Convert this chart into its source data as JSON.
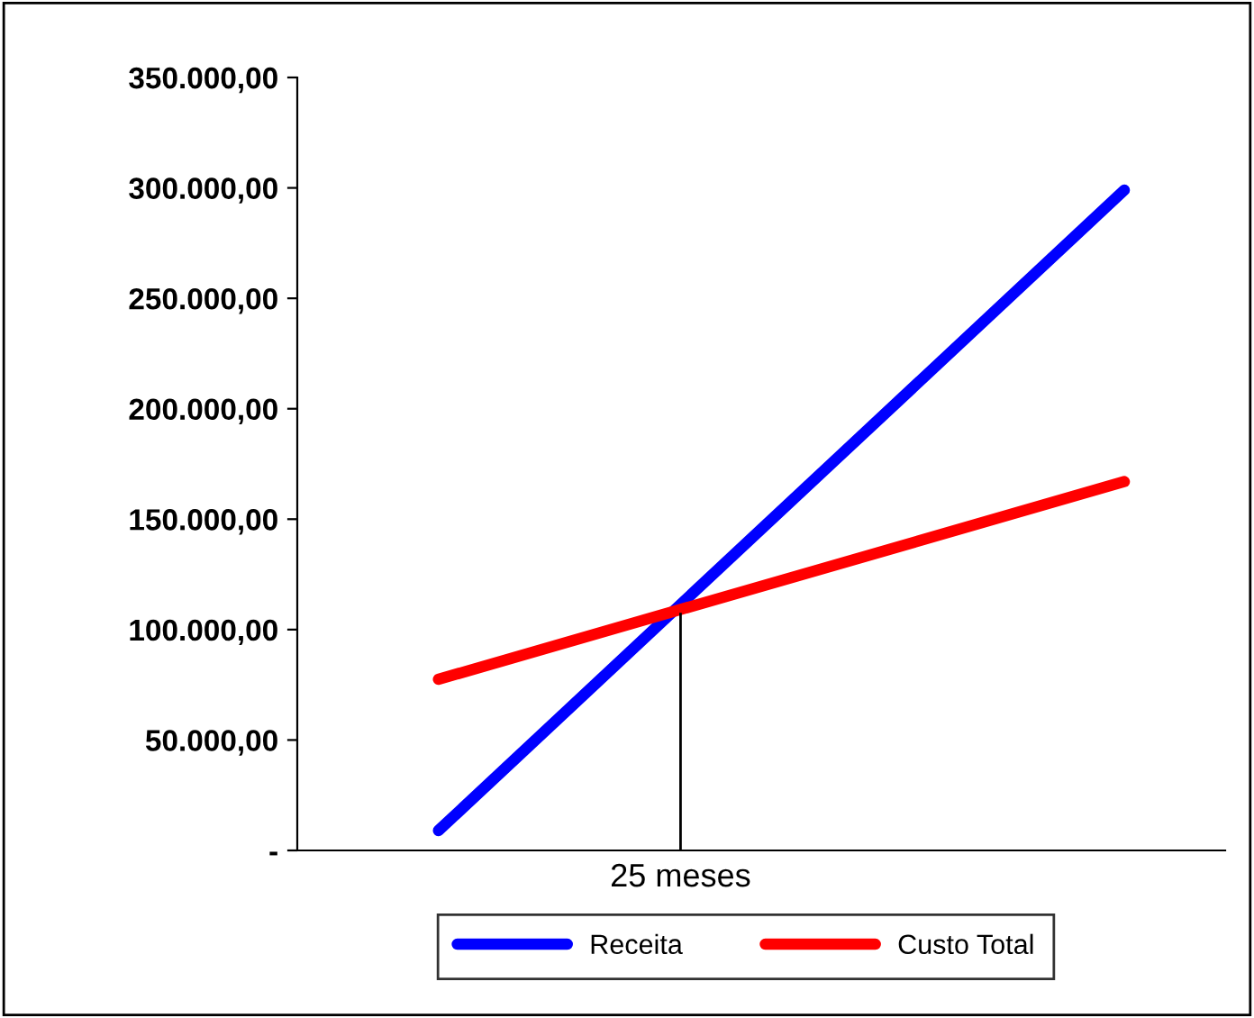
{
  "chart_data": {
    "type": "line",
    "categories": [
      null,
      null,
      null,
      null,
      null,
      null,
      null,
      null,
      null,
      "25 meses",
      null,
      null,
      null,
      null,
      null,
      null,
      null,
      null,
      null,
      null,
      null,
      null,
      null
    ],
    "ylim": [
      0,
      350000
    ],
    "yticks": [
      {
        "value": 0,
        "label": "-"
      },
      {
        "value": 50000,
        "label": "50.000,00"
      },
      {
        "value": 100000,
        "label": "100.000,00"
      },
      {
        "value": 150000,
        "label": "150.000,00"
      },
      {
        "value": 200000,
        "label": "200.000,00"
      },
      {
        "value": 250000,
        "label": "250.000,00"
      },
      {
        "value": 300000,
        "label": "300.000,00"
      },
      {
        "value": 350000,
        "label": "350.000,00"
      }
    ],
    "series": [
      {
        "name": "Receita",
        "color": "#0000ff",
        "values": [
          null,
          null,
          null,
          9000,
          null,
          null,
          null,
          null,
          null,
          null,
          null,
          null,
          null,
          null,
          null,
          null,
          null,
          null,
          null,
          null,
          299000,
          null,
          null
        ]
      },
      {
        "name": "Custo Total",
        "color": "#ff0000",
        "values": [
          null,
          null,
          null,
          77500,
          null,
          null,
          null,
          null,
          null,
          null,
          null,
          null,
          null,
          null,
          null,
          null,
          null,
          null,
          null,
          null,
          167000,
          null,
          null
        ]
      },
      {
        "type": "line",
        "color": "#000000",
        "x": [
          "25 meses",
          "25 meses"
        ],
        "values": [
          0,
          107000
        ]
      }
    ],
    "grid": false,
    "legend": "bottom",
    "marker": "none",
    "line_style": "solid"
  }
}
